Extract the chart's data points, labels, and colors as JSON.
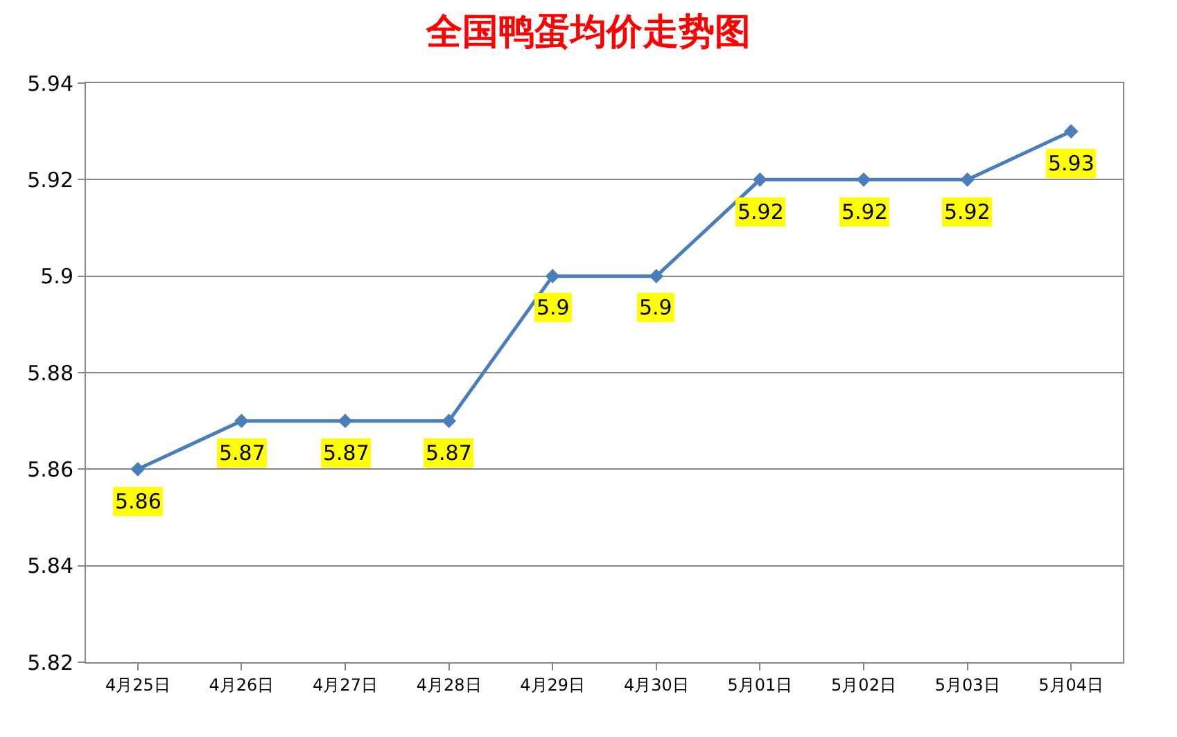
{
  "chart_data": {
    "type": "line",
    "title": "全国鸭蛋均价走势图",
    "categories": [
      "4月25日",
      "4月26日",
      "4月27日",
      "4月28日",
      "4月29日",
      "4月30日",
      "5月01日",
      "5月02日",
      "5月03日",
      "5月04日"
    ],
    "series": [
      {
        "color": "#4a7ebb",
        "values": [
          5.86,
          5.87,
          5.87,
          5.87,
          5.9,
          5.9,
          5.92,
          5.92,
          5.92,
          5.93
        ]
      }
    ],
    "ylim": [
      5.82,
      5.94
    ],
    "yticks": [
      5.82,
      5.84,
      5.86,
      5.88,
      5.9,
      5.92,
      5.94
    ],
    "grid": "y",
    "marker": "diamond",
    "line_style": "solid",
    "data_labels": true
  }
}
